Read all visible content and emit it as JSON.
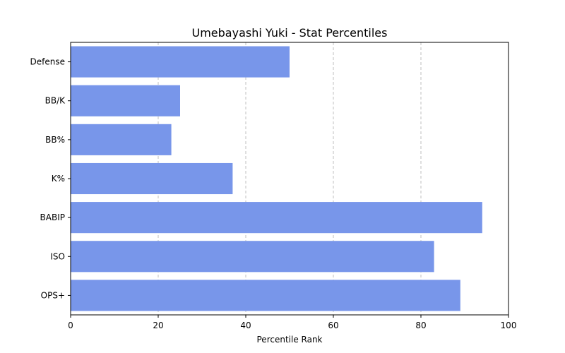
{
  "chart_data": {
    "type": "bar",
    "orientation": "horizontal",
    "title": "Umebayashi Yuki - Stat Percentiles",
    "xlabel": "Percentile Rank",
    "ylabel": "",
    "xlim": [
      0,
      100
    ],
    "xticks": [
      0,
      20,
      40,
      60,
      80,
      100
    ],
    "grid": "x-dashed",
    "bar_color": "#7896ea",
    "categories": [
      "Defense",
      "BB/K",
      "BB%",
      "K%",
      "BABIP",
      "ISO",
      "OPS+"
    ],
    "values": [
      50,
      25,
      23,
      37,
      94,
      83,
      89
    ]
  }
}
